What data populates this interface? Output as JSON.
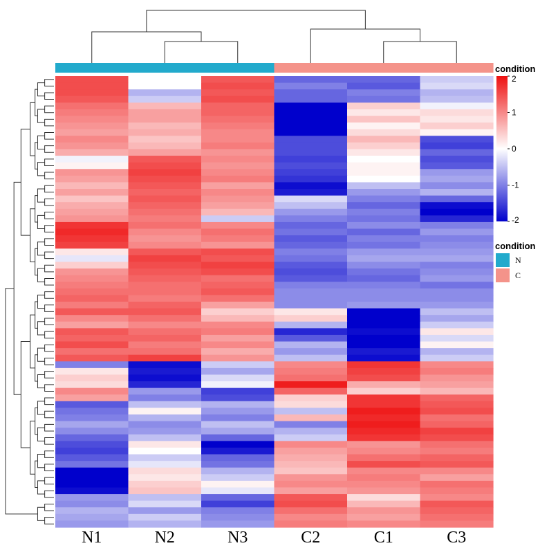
{
  "chart_data": {
    "type": "heatmap",
    "columns": [
      "N1",
      "N2",
      "N3",
      "C2",
      "C1",
      "C3"
    ],
    "column_condition": [
      "N",
      "N",
      "N",
      "C",
      "C",
      "C"
    ],
    "color_scale": {
      "min": -2,
      "max": 2,
      "ticks": [
        2,
        1,
        0,
        -1,
        -2
      ],
      "colors": [
        "#0000cc",
        "#ffffff",
        "#ee1111"
      ]
    },
    "color_legend_title": "condition",
    "condition_legend": {
      "title": "condition",
      "items": [
        {
          "label": "N",
          "color": "#22aacc"
        },
        {
          "label": "C",
          "color": "#f4938a"
        }
      ]
    },
    "column_dendrogram": "((N1,(N2,N3)),(C2,(C1,C3)))",
    "rows": [
      [
        1.5,
        0.0,
        1.4,
        -1.2,
        -1.2,
        -0.4
      ],
      [
        1.5,
        0.0,
        1.5,
        -1.0,
        -1.3,
        -0.3
      ],
      [
        1.5,
        -0.6,
        1.4,
        -1.2,
        -1.0,
        -0.6
      ],
      [
        1.4,
        -0.4,
        1.5,
        -1.2,
        -1.1,
        -0.5
      ],
      [
        1.2,
        0.6,
        1.3,
        -2.0,
        0.4,
        -0.1
      ],
      [
        1.1,
        0.8,
        1.3,
        -2.0,
        0.2,
        0.3
      ],
      [
        1.0,
        0.8,
        1.2,
        -2.0,
        0.5,
        0.2
      ],
      [
        0.9,
        0.6,
        1.1,
        -2.0,
        0.1,
        0.4
      ],
      [
        0.8,
        0.7,
        1.0,
        -2.0,
        0.3,
        0.1
      ],
      [
        1.0,
        0.5,
        1.0,
        -1.4,
        0.6,
        -1.4
      ],
      [
        0.9,
        0.6,
        1.1,
        -1.4,
        0.4,
        -1.5
      ],
      [
        0.7,
        0.8,
        0.9,
        -1.4,
        0.2,
        -1.2
      ],
      [
        -0.1,
        1.4,
        1.0,
        -1.5,
        0.0,
        -1.4
      ],
      [
        0.1,
        1.5,
        0.9,
        -1.4,
        0.1,
        -1.3
      ],
      [
        0.9,
        1.6,
        1.0,
        -1.5,
        0.1,
        -0.8
      ],
      [
        0.8,
        1.5,
        1.1,
        -1.6,
        0.0,
        -0.7
      ],
      [
        0.6,
        1.4,
        0.8,
        -1.9,
        -0.5,
        -0.9
      ],
      [
        0.8,
        1.3,
        1.0,
        -1.8,
        -0.8,
        -0.6
      ],
      [
        0.5,
        1.4,
        0.9,
        -0.3,
        -1.0,
        -1.2
      ],
      [
        0.7,
        1.3,
        0.8,
        -0.5,
        -1.2,
        -1.9
      ],
      [
        0.8,
        1.2,
        0.6,
        -0.8,
        -1.0,
        -2.0
      ],
      [
        0.9,
        1.1,
        -0.4,
        -1.0,
        -1.1,
        -1.7
      ],
      [
        1.7,
        1.2,
        1.0,
        -1.2,
        -0.9,
        -1.0
      ],
      [
        1.8,
        1.0,
        1.2,
        -1.1,
        -1.2,
        -0.8
      ],
      [
        1.7,
        0.9,
        1.1,
        -1.3,
        -1.0,
        -1.0
      ],
      [
        1.6,
        1.0,
        0.9,
        -1.2,
        -1.1,
        -0.9
      ],
      [
        0.2,
        1.4,
        1.5,
        -1.0,
        -0.8,
        -0.8
      ],
      [
        -0.2,
        1.6,
        1.4,
        -1.1,
        -0.7,
        -0.7
      ],
      [
        0.4,
        1.5,
        1.6,
        -1.3,
        -0.9,
        -1.0
      ],
      [
        0.9,
        1.4,
        1.5,
        -1.4,
        -1.1,
        -0.9
      ],
      [
        1.0,
        1.3,
        1.2,
        -1.3,
        -1.2,
        -0.8
      ],
      [
        1.1,
        1.2,
        1.3,
        -1.0,
        -1.0,
        -1.1
      ],
      [
        1.2,
        1.2,
        1.4,
        -0.9,
        -0.9,
        -0.9
      ],
      [
        1.3,
        1.1,
        1.2,
        -0.9,
        -0.9,
        -0.9
      ],
      [
        1.1,
        1.3,
        0.8,
        -0.9,
        -0.8,
        -0.8
      ],
      [
        1.4,
        1.4,
        0.4,
        0.2,
        -2.0,
        -0.5
      ],
      [
        1.0,
        1.2,
        0.6,
        0.4,
        -2.0,
        -0.7
      ],
      [
        0.8,
        1.0,
        1.0,
        -0.6,
        -2.0,
        -0.4
      ],
      [
        1.4,
        1.2,
        1.1,
        -1.7,
        -1.9,
        0.2
      ],
      [
        1.3,
        1.3,
        0.8,
        -1.3,
        -2.0,
        -0.3
      ],
      [
        1.5,
        1.1,
        1.0,
        -0.6,
        -2.0,
        0.1
      ],
      [
        1.2,
        1.2,
        0.7,
        -0.8,
        -1.8,
        -0.6
      ],
      [
        1.4,
        1.6,
        0.9,
        -0.5,
        -1.9,
        -0.4
      ],
      [
        -1.0,
        -1.9,
        -0.4,
        1.0,
        1.7,
        1.0
      ],
      [
        0.2,
        -1.8,
        -0.7,
        1.1,
        1.6,
        1.1
      ],
      [
        0.4,
        -1.9,
        -0.3,
        1.2,
        1.5,
        0.9
      ],
      [
        0.3,
        -1.7,
        -0.1,
        1.9,
        0.7,
        0.8
      ],
      [
        1.0,
        -0.8,
        -1.5,
        1.3,
        0.4,
        0.6
      ],
      [
        0.8,
        -1.0,
        -1.4,
        0.4,
        1.7,
        1.3
      ],
      [
        -1.3,
        -0.5,
        -0.6,
        0.3,
        1.7,
        1.4
      ],
      [
        -1.1,
        0.1,
        -0.8,
        -0.5,
        1.9,
        1.5
      ],
      [
        -1.0,
        -0.6,
        -1.0,
        0.6,
        1.8,
        1.2
      ],
      [
        -0.7,
        -0.9,
        -0.5,
        -1.0,
        1.9,
        1.3
      ],
      [
        -0.9,
        -0.8,
        -0.7,
        -0.6,
        1.8,
        1.6
      ],
      [
        -1.2,
        -0.5,
        -1.2,
        -0.4,
        1.7,
        1.5
      ],
      [
        -1.4,
        0.2,
        -2.0,
        1.0,
        0.9,
        1.2
      ],
      [
        -1.5,
        0.0,
        -1.8,
        0.8,
        1.0,
        1.1
      ],
      [
        -1.3,
        -0.4,
        -1.2,
        0.7,
        1.2,
        1.3
      ],
      [
        -1.1,
        -0.2,
        -1.1,
        0.6,
        1.5,
        1.4
      ],
      [
        -2.0,
        0.3,
        -0.6,
        0.5,
        1.0,
        1.0
      ],
      [
        -2.0,
        0.2,
        -0.4,
        0.9,
        1.1,
        0.8
      ],
      [
        -2.0,
        0.4,
        0.1,
        1.0,
        1.0,
        1.2
      ],
      [
        -1.9,
        0.5,
        -0.2,
        0.8,
        0.9,
        1.1
      ],
      [
        -0.8,
        -0.5,
        -1.2,
        1.4,
        0.3,
        1.0
      ],
      [
        -0.9,
        -0.3,
        -1.5,
        1.5,
        0.6,
        1.4
      ],
      [
        -0.6,
        -0.8,
        -1.0,
        1.2,
        0.9,
        1.3
      ],
      [
        -0.7,
        -0.4,
        -0.9,
        1.0,
        0.8,
        1.2
      ],
      [
        -0.8,
        -0.6,
        -0.8,
        1.1,
        1.0,
        1.1
      ]
    ]
  }
}
